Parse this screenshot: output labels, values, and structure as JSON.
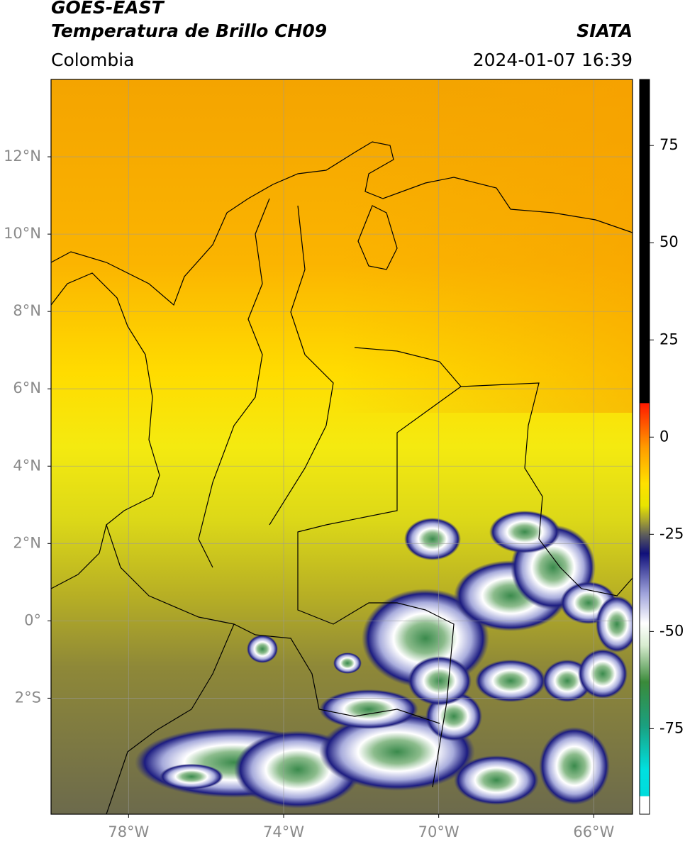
{
  "header": {
    "title": "GOES-EAST",
    "subtitle": "Temperatura de Brillo CH09",
    "region": "Colombia",
    "source": "SIATA",
    "timestamp": "2024-01-07 16:39"
  },
  "map": {
    "xlim": [
      -80,
      -65
    ],
    "ylim": [
      -5,
      14
    ],
    "xticks": [
      {
        "value": -78,
        "label": "78°W"
      },
      {
        "value": -74,
        "label": "74°W"
      },
      {
        "value": -70,
        "label": "70°W"
      },
      {
        "value": -66,
        "label": "66°W"
      }
    ],
    "yticks": [
      {
        "value": 12,
        "label": "12°N"
      },
      {
        "value": 10,
        "label": "10°N"
      },
      {
        "value": 8,
        "label": "8°N"
      },
      {
        "value": 6,
        "label": "6°N"
      },
      {
        "value": 4,
        "label": "4°N"
      },
      {
        "value": 2,
        "label": "2°N"
      },
      {
        "value": 0,
        "label": "0°"
      },
      {
        "value": -2,
        "label": "2°S"
      }
    ],
    "grid": true
  },
  "colorbar": {
    "lim": [
      -97,
      92
    ],
    "ticks": [
      75,
      50,
      25,
      0,
      -25,
      -50,
      -75
    ]
  }
}
